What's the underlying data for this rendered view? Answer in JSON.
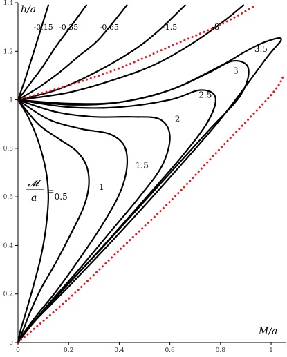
{
  "chart_data": {
    "type": "line",
    "xlabel": "M/a",
    "ylabel": "h/a",
    "xlim": [
      0,
      1.06
    ],
    "ylim": [
      0,
      1.4
    ],
    "xticks": [
      0,
      0.2,
      0.4,
      0.6,
      0.8,
      1
    ],
    "xtick_labels": [
      "0",
      "0.2",
      "0.4",
      "0.6",
      "0.8",
      "1"
    ],
    "yticks": [
      0,
      0.2,
      0.4,
      0.6,
      0.8,
      1,
      1.2,
      1.4
    ],
    "ytick_labels": [
      "0",
      "0.2",
      "0.4",
      "0.6",
      "0.8",
      "1",
      "1.2",
      "1.4"
    ],
    "grid": false,
    "parameter_label": {
      "numerator": "𝓜",
      "denominator": "a",
      "equals": "="
    },
    "series": [
      {
        "name": "-0.15",
        "style": "solid",
        "color": "#000000",
        "x": [
          0,
          0.03,
          0.06,
          0.09,
          0.12
        ],
        "y": [
          1.0,
          1.09,
          1.19,
          1.29,
          1.39
        ]
      },
      {
        "name": "-0.35",
        "style": "solid",
        "color": "#000000",
        "x": [
          0,
          0.05,
          0.1,
          0.15,
          0.2,
          0.27
        ],
        "y": [
          1.0,
          1.07,
          1.14,
          1.22,
          1.29,
          1.39
        ]
      },
      {
        "name": "-0.65",
        "style": "solid",
        "color": "#000000",
        "x": [
          0,
          0.08,
          0.16,
          0.24,
          0.32,
          0.43
        ],
        "y": [
          1.0,
          1.05,
          1.11,
          1.18,
          1.25,
          1.39
        ]
      },
      {
        "name": "-1.5",
        "style": "solid",
        "color": "#000000",
        "x": [
          0,
          0.15,
          0.3,
          0.45,
          0.55,
          0.66
        ],
        "y": [
          1.0,
          1.04,
          1.11,
          1.2,
          1.28,
          1.39
        ]
      },
      {
        "name": "-8",
        "style": "solid",
        "color": "#000000",
        "x": [
          0,
          0.2,
          0.4,
          0.55,
          0.7,
          0.82,
          0.89
        ],
        "y": [
          1.0,
          1.03,
          1.09,
          1.15,
          1.24,
          1.33,
          1.39
        ]
      },
      {
        "name": "3.5",
        "style": "solid",
        "color": "#000000",
        "x": [
          0,
          0.2,
          0.4,
          0.6,
          0.8,
          0.9,
          0.98,
          1.04,
          0.98,
          0.8,
          0.6,
          0.4,
          0.2,
          0.05,
          0
        ],
        "y": [
          1.0,
          0.985,
          0.99,
          1.04,
          1.14,
          1.2,
          1.24,
          1.25,
          1.17,
          0.92,
          0.68,
          0.45,
          0.23,
          0.07,
          0.0
        ]
      },
      {
        "name": "3",
        "style": "solid",
        "color": "#000000",
        "x": [
          0,
          0.2,
          0.4,
          0.6,
          0.75,
          0.85,
          0.91,
          0.88,
          0.75,
          0.55,
          0.35,
          0.18,
          0.05,
          0
        ],
        "y": [
          1.0,
          0.98,
          0.99,
          1.04,
          1.11,
          1.16,
          1.13,
          1.02,
          0.87,
          0.64,
          0.41,
          0.22,
          0.07,
          0.0
        ]
      },
      {
        "name": "2.5",
        "style": "solid",
        "color": "#000000",
        "x": [
          0,
          0.2,
          0.4,
          0.6,
          0.72,
          0.78,
          0.75,
          0.65,
          0.5,
          0.33,
          0.18,
          0.06,
          0
        ],
        "y": [
          1.0,
          0.97,
          0.97,
          1.0,
          1.04,
          1.01,
          0.91,
          0.77,
          0.59,
          0.39,
          0.22,
          0.08,
          0.0
        ]
      },
      {
        "name": "2",
        "style": "solid",
        "color": "#000000",
        "x": [
          0,
          0.15,
          0.3,
          0.45,
          0.56,
          0.6,
          0.57,
          0.48,
          0.36,
          0.24,
          0.13,
          0.05,
          0
        ],
        "y": [
          1.0,
          0.95,
          0.93,
          0.93,
          0.92,
          0.85,
          0.73,
          0.6,
          0.45,
          0.3,
          0.17,
          0.07,
          0.0
        ]
      },
      {
        "name": "1.5",
        "style": "solid",
        "color": "#000000",
        "x": [
          0,
          0.12,
          0.25,
          0.36,
          0.42,
          0.43,
          0.4,
          0.33,
          0.24,
          0.15,
          0.08,
          0.03,
          0
        ],
        "y": [
          1.0,
          0.92,
          0.88,
          0.86,
          0.81,
          0.72,
          0.61,
          0.48,
          0.34,
          0.21,
          0.12,
          0.05,
          0.0
        ]
      },
      {
        "name": "1",
        "style": "solid",
        "color": "#000000",
        "x": [
          0,
          0.08,
          0.16,
          0.23,
          0.27,
          0.28,
          0.26,
          0.21,
          0.15,
          0.09,
          0.05,
          0.02,
          0
        ],
        "y": [
          1.0,
          0.9,
          0.84,
          0.79,
          0.73,
          0.65,
          0.56,
          0.45,
          0.33,
          0.22,
          0.13,
          0.05,
          0.0
        ]
      },
      {
        "name": "0.5",
        "style": "solid",
        "color": "#000000",
        "x": [
          0,
          0.04,
          0.08,
          0.11,
          0.12,
          0.11,
          0.09,
          0.06,
          0.03,
          0.01,
          0
        ],
        "y": [
          1.0,
          0.93,
          0.83,
          0.71,
          0.6,
          0.47,
          0.35,
          0.23,
          0.12,
          0.05,
          0.0
        ]
      },
      {
        "name": "",
        "style": "dotted",
        "color": "#e8141a",
        "x": [
          0,
          0.2,
          0.4,
          0.6,
          0.8,
          0.94
        ],
        "y": [
          1.0,
          1.06,
          1.13,
          1.22,
          1.31,
          1.39
        ]
      },
      {
        "name": "",
        "style": "dotted",
        "color": "#e8141a",
        "x": [
          0,
          0.2,
          0.4,
          0.6,
          0.8,
          1.0,
          1.05
        ],
        "y": [
          0.0,
          0.18,
          0.38,
          0.58,
          0.8,
          1.02,
          1.1
        ]
      }
    ],
    "labels": [
      {
        "text": "-0.15",
        "x": 0.1,
        "y": 1.3
      },
      {
        "text": "-0.35",
        "x": 0.2,
        "y": 1.3
      },
      {
        "text": "-0.65",
        "x": 0.36,
        "y": 1.3
      },
      {
        "text": "-1.5",
        "x": 0.6,
        "y": 1.3
      },
      {
        "text": "-8",
        "x": 0.78,
        "y": 1.3
      },
      {
        "text": "3.5",
        "x": 0.96,
        "y": 1.21
      },
      {
        "text": "3",
        "x": 0.86,
        "y": 1.12
      },
      {
        "text": "2.5",
        "x": 0.74,
        "y": 1.02
      },
      {
        "text": "2",
        "x": 0.63,
        "y": 0.92
      },
      {
        "text": "1.5",
        "x": 0.49,
        "y": 0.73
      },
      {
        "text": "1",
        "x": 0.33,
        "y": 0.64
      },
      {
        "text": "0.5",
        "x": 0.17,
        "y": 0.6
      }
    ]
  }
}
